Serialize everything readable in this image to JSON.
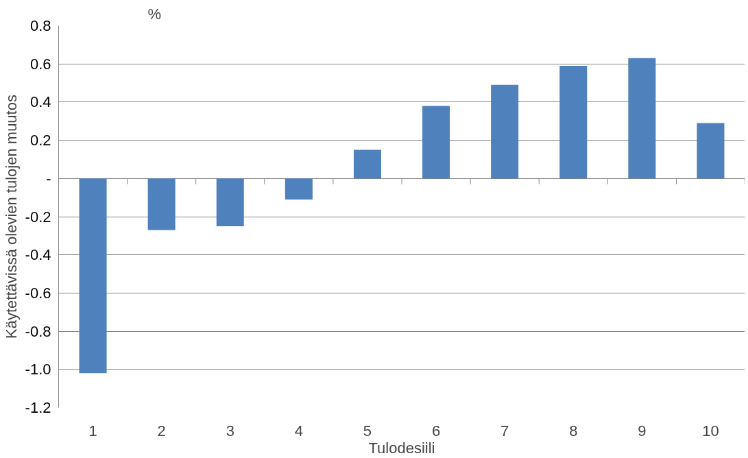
{
  "chart_data": {
    "type": "bar",
    "xlabel": "Tulodesiili",
    "ylabel": "Käytettävissä olevien tulojen muutos",
    "annotations": [
      "%"
    ],
    "categories": [
      "1",
      "2",
      "3",
      "4",
      "5",
      "6",
      "7",
      "8",
      "9",
      "10"
    ],
    "values": [
      -1.02,
      -0.27,
      -0.25,
      -0.11,
      0.15,
      0.38,
      0.49,
      0.59,
      0.63,
      0.29
    ],
    "color": "#4f81bd",
    "ylim": [
      -1.2,
      0.8
    ],
    "yticks": [
      0.8,
      0.6,
      0.4,
      0.2,
      {
        "value": 0,
        "label": "-"
      },
      -0.2,
      -0.4,
      -0.6,
      -0.8,
      {
        "value": -1.0,
        "label": "-1.0"
      },
      -1.2
    ],
    "grid": "y"
  }
}
